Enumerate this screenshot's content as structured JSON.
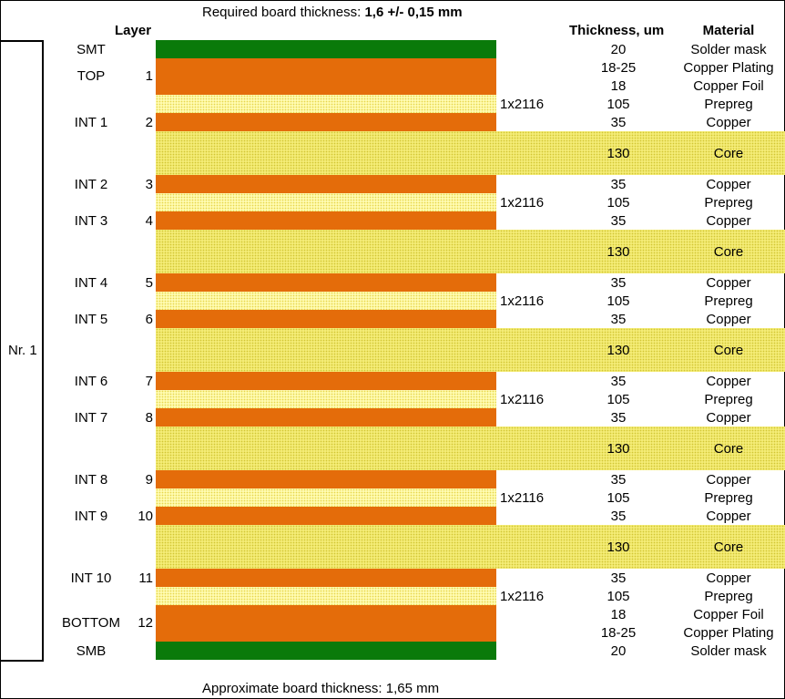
{
  "header": {
    "required_prefix": "Required board thickness:",
    "required_value": "1,6 +/- 0,15 mm",
    "col_layer": "Layer",
    "col_thickness": "Thickness, um",
    "col_material": "Material"
  },
  "footer": {
    "approx_thickness": "Approximate board thickness: 1,65 mm"
  },
  "stack_label": "Nr. 1",
  "colors": {
    "solder_mask": "#0a7a0a",
    "copper": "#e46c0a",
    "prepreg": "#fffbb0",
    "core": "#f4ec76"
  },
  "layers": [
    {
      "name": "SMT",
      "num": ""
    },
    {
      "name": "TOP",
      "num": "1"
    },
    {
      "name": "INT 1",
      "num": "2"
    },
    {
      "name": "INT 2",
      "num": "3"
    },
    {
      "name": "INT 3",
      "num": "4"
    },
    {
      "name": "INT 4",
      "num": "5"
    },
    {
      "name": "INT 5",
      "num": "6"
    },
    {
      "name": "INT 6",
      "num": "7"
    },
    {
      "name": "INT 7",
      "num": "8"
    },
    {
      "name": "INT 8",
      "num": "9"
    },
    {
      "name": "INT 9",
      "num": "10"
    },
    {
      "name": "INT 10",
      "num": "11"
    },
    {
      "name": "BOTTOM",
      "num": "12"
    },
    {
      "name": "SMB",
      "num": ""
    }
  ],
  "prepreg_label": "1x2116",
  "rows": [
    {
      "thickness": "20",
      "material": "Solder mask"
    },
    {
      "thickness": "18-25",
      "material": "Copper Plating"
    },
    {
      "thickness": "18",
      "material": "Copper Foil"
    },
    {
      "thickness": "105",
      "material": "Prepreg"
    },
    {
      "thickness": "35",
      "material": "Copper"
    },
    {
      "thickness": "130",
      "material": "Core"
    },
    {
      "thickness": "35",
      "material": "Copper"
    },
    {
      "thickness": "105",
      "material": "Prepreg"
    },
    {
      "thickness": "35",
      "material": "Copper"
    },
    {
      "thickness": "130",
      "material": "Core"
    },
    {
      "thickness": "35",
      "material": "Copper"
    },
    {
      "thickness": "105",
      "material": "Prepreg"
    },
    {
      "thickness": "35",
      "material": "Copper"
    },
    {
      "thickness": "130",
      "material": "Core"
    },
    {
      "thickness": "35",
      "material": "Copper"
    },
    {
      "thickness": "105",
      "material": "Prepreg"
    },
    {
      "thickness": "35",
      "material": "Copper"
    },
    {
      "thickness": "130",
      "material": "Core"
    },
    {
      "thickness": "35",
      "material": "Copper"
    },
    {
      "thickness": "105",
      "material": "Prepreg"
    },
    {
      "thickness": "35",
      "material": "Copper"
    },
    {
      "thickness": "130",
      "material": "Core"
    },
    {
      "thickness": "35",
      "material": "Copper"
    },
    {
      "thickness": "105",
      "material": "Prepreg"
    },
    {
      "thickness": "18",
      "material": "Copper Foil"
    },
    {
      "thickness": "18-25",
      "material": "Copper Plating"
    },
    {
      "thickness": "20",
      "material": "Solder mask"
    }
  ]
}
